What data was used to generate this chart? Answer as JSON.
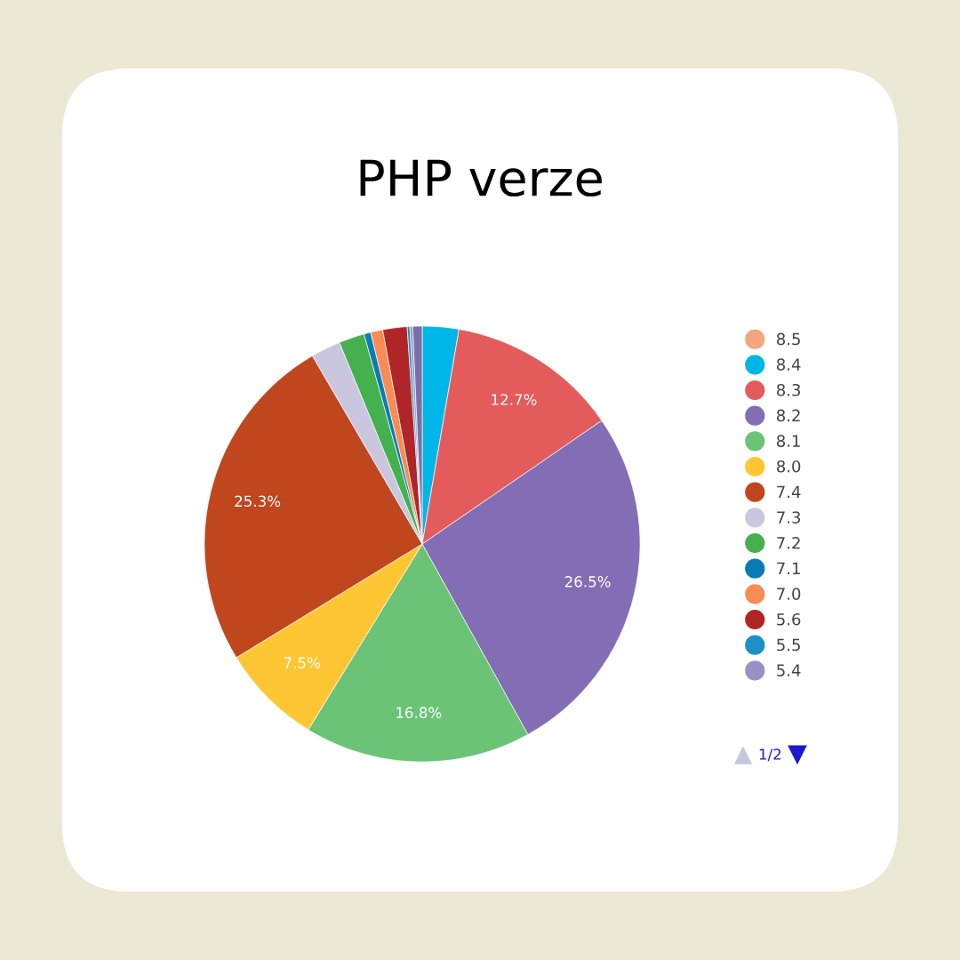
{
  "chart_data": {
    "type": "pie",
    "title": "PHP verze",
    "categories": [
      "8.5",
      "8.4",
      "8.3",
      "8.2",
      "8.1",
      "8.0",
      "7.4",
      "7.3",
      "7.2",
      "7.1",
      "7.0",
      "5.6",
      "5.5",
      "5.4",
      null
    ],
    "values": [
      null,
      2.7,
      12.7,
      26.5,
      16.8,
      7.5,
      25.3,
      2.2,
      1.9,
      0.5,
      0.9,
      1.8,
      0.2,
      0.2,
      0.7
    ],
    "colors": [
      "#f4a582",
      "#00b5e8",
      "#e35b5b",
      "#836db4",
      "#6bc375",
      "#ffc634",
      "#c0461e",
      "#cbc6e0",
      "#44b04e",
      "#0a7bb6",
      "#f78c54",
      "#b02528",
      "#1b91c5",
      "#9b8fc4",
      "#7a6fa8"
    ],
    "value_labels": [
      null,
      null,
      "12.7%",
      "26.5%",
      "16.8%",
      "7.5%",
      "25.3%",
      null,
      null,
      null,
      null,
      null,
      null,
      null,
      null
    ],
    "legend": "right",
    "annotations": [
      "1/2"
    ]
  }
}
